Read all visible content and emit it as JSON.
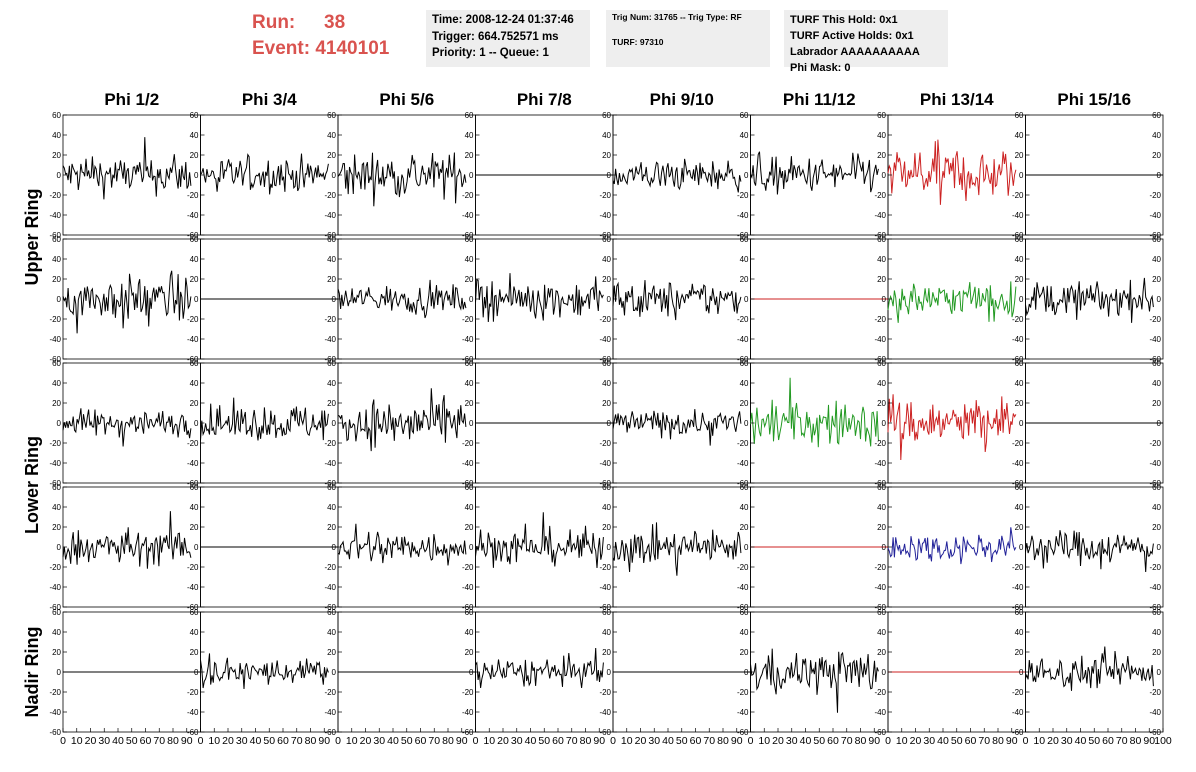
{
  "header": {
    "run_label": "Run:",
    "run_value": "38",
    "event_label": "Event:",
    "event_value": "4140101",
    "time": "Time: 2008-12-24 01:37:46",
    "trigger": "Trigger: 664.752571 ms",
    "priority": "Priority: 1 -- Queue: 1",
    "trig_num": "Trig Num: 31765 -- Trig Type: RF",
    "turf": "TURF: 97310",
    "turf_this_hold": "TURF This Hold: 0x1",
    "turf_active_holds": "TURF Active Holds: 0x1",
    "labrador": "Labrador AAAAAAAAAA",
    "phi_mask": "Phi Mask: 0"
  },
  "colors": {
    "header_red": "#d9534f",
    "trace_black": "#000000",
    "trace_red": "#cc2222",
    "trace_green": "#229922",
    "trace_blue": "#222299",
    "panel_bg": "#eeeeee"
  },
  "chart_data": {
    "type": "line",
    "columns": [
      "Phi 1/2",
      "Phi 3/4",
      "Phi 5/6",
      "Phi 7/8",
      "Phi 9/10",
      "Phi 11/12",
      "Phi 13/14",
      "Phi 15/16"
    ],
    "ring_labels": [
      "Upper Ring",
      "Lower Ring",
      "Nadir Ring"
    ],
    "ylim": [
      -60,
      60
    ],
    "y_ticks": [
      -60,
      -40,
      -20,
      0,
      20,
      40,
      60
    ],
    "xlim": [
      0,
      100
    ],
    "x_ticks": [
      0,
      10,
      20,
      30,
      40,
      50,
      60,
      70,
      80,
      90,
      100
    ],
    "grid": false,
    "traces": [
      [
        "noise",
        "noise",
        "noise",
        "flat",
        "noise",
        "noise",
        "noise-red",
        "flat"
      ],
      [
        "noise",
        "flat",
        "noise",
        "noise",
        "noise",
        "flat-red",
        "noise-green",
        "noise"
      ],
      [
        "noise",
        "noise",
        "noise",
        "flat",
        "noise",
        "noise-green",
        "noise-red",
        "flat"
      ],
      [
        "noise",
        "flat",
        "noise",
        "noise",
        "noise",
        "flat-red",
        "noise-blue",
        "noise"
      ],
      [
        "flat",
        "noise",
        "flat",
        "noise",
        "flat",
        "noise",
        "flat-red",
        "noise"
      ]
    ],
    "amplitudes": [
      [
        17,
        16,
        20,
        0,
        14,
        16,
        23,
        0
      ],
      [
        20,
        0,
        12,
        17,
        16,
        0,
        15,
        16
      ],
      [
        12,
        16,
        21,
        0,
        12,
        20,
        23,
        0
      ],
      [
        16,
        0,
        15,
        16,
        16,
        0,
        13,
        15
      ],
      [
        0,
        12,
        0,
        13,
        0,
        19,
        0,
        14
      ]
    ]
  }
}
